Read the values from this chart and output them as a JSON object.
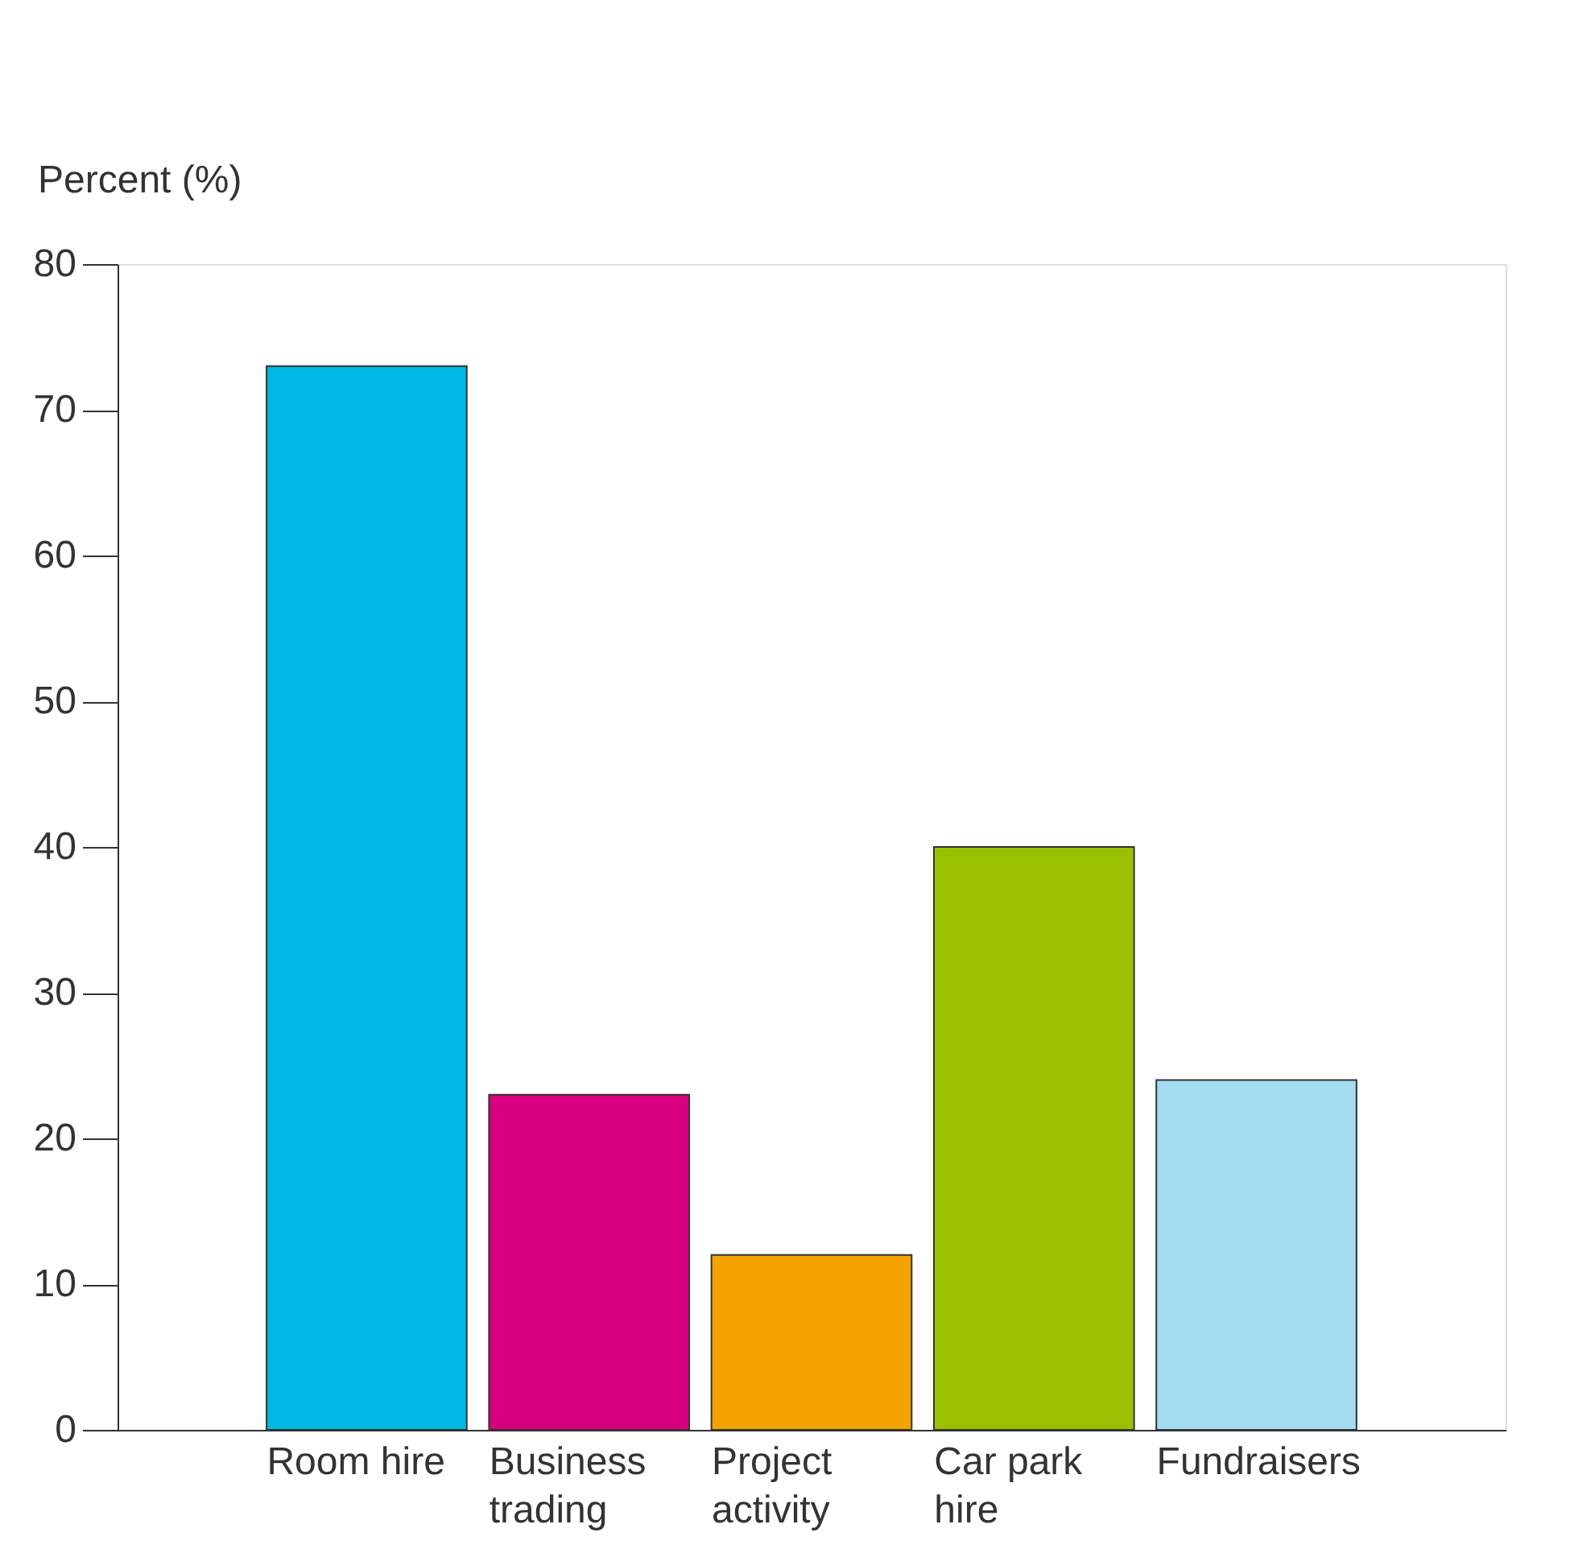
{
  "chart_data": {
    "type": "bar",
    "ylabel": "Percent (%)",
    "categories": [
      "Room hire",
      "Business trading",
      "Project activity",
      "Car park hire",
      "Fundraisers"
    ],
    "values": [
      73,
      23,
      12,
      40,
      24
    ],
    "colors": [
      "#00b9e4",
      "#d6007e",
      "#f4a300",
      "#99c100",
      "#a4dcf0"
    ],
    "ylim": [
      0,
      80
    ],
    "yticks": [
      0,
      10,
      20,
      30,
      40,
      50,
      60,
      70,
      80
    ],
    "grid": false
  }
}
